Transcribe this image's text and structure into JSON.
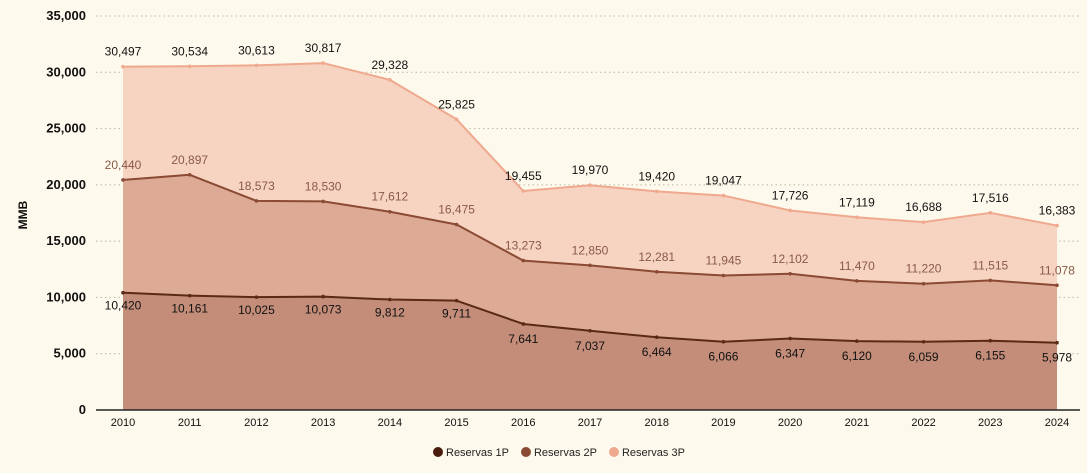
{
  "chart_data": {
    "type": "area",
    "stacked": false,
    "categories": [
      "2010",
      "2011",
      "2012",
      "2013",
      "2014",
      "2015",
      "2016",
      "2017",
      "2018",
      "2019",
      "2020",
      "2021",
      "2022",
      "2023",
      "2024"
    ],
    "ylabel": "MMB",
    "xlabel": "",
    "ylim": [
      0,
      35000
    ],
    "yticks": [
      0,
      5000,
      10000,
      15000,
      20000,
      25000,
      30000,
      35000
    ],
    "ytick_labels": [
      "0",
      "5,000",
      "10,000",
      "15,000",
      "20,000",
      "25,000",
      "30,000",
      "35,000"
    ],
    "grid": "horizontal-dotted",
    "legend_position": "bottom-center",
    "series": [
      {
        "name": "Reservas 1P",
        "values": [
          10420,
          10161,
          10025,
          10073,
          9812,
          9711,
          7641,
          7037,
          6464,
          6066,
          6347,
          6120,
          6059,
          6155,
          5978
        ],
        "labels": [
          "10,420",
          "10,161",
          "10,025",
          "10,073",
          "9,812",
          "9,711",
          "7,641",
          "7,037",
          "6,464",
          "6,066",
          "6,347",
          "6,120",
          "6,059",
          "6,155",
          "5,978"
        ],
        "line_color": "#5a2a16",
        "fill_color": "#c38d79",
        "label_color": "#111111",
        "legend_color": "#4a1c0c"
      },
      {
        "name": "Reservas 2P",
        "values": [
          20440,
          20897,
          18573,
          18530,
          17612,
          16475,
          13273,
          12850,
          12281,
          11945,
          12102,
          11470,
          11220,
          11515,
          11078
        ],
        "labels": [
          "20,440",
          "20,897",
          "18,573",
          "18,530",
          "17,612",
          "16,475",
          "13,273",
          "12,850",
          "12,281",
          "11,945",
          "12,102",
          "11,470",
          "11,220",
          "11,515",
          "11,078"
        ],
        "line_color": "#8a4a33",
        "fill_color": "#dcaa95",
        "label_color": "#8a5a48",
        "legend_color": "#8a4a33"
      },
      {
        "name": "Reservas 3P",
        "values": [
          30497,
          30534,
          30613,
          30817,
          29328,
          25825,
          19455,
          19970,
          19420,
          19047,
          17726,
          17119,
          16688,
          17516,
          16383
        ],
        "labels": [
          "30,497",
          "30,534",
          "30,613",
          "30,817",
          "29,328",
          "25,825",
          "19,455",
          "19,970",
          "19,420",
          "19,047",
          "17,726",
          "17,119",
          "16,688",
          "17,516",
          "16,383"
        ],
        "line_color": "#eea98e",
        "fill_color": "#f7d3c2",
        "label_color": "#111111",
        "legend_color": "#eea98e"
      }
    ]
  }
}
